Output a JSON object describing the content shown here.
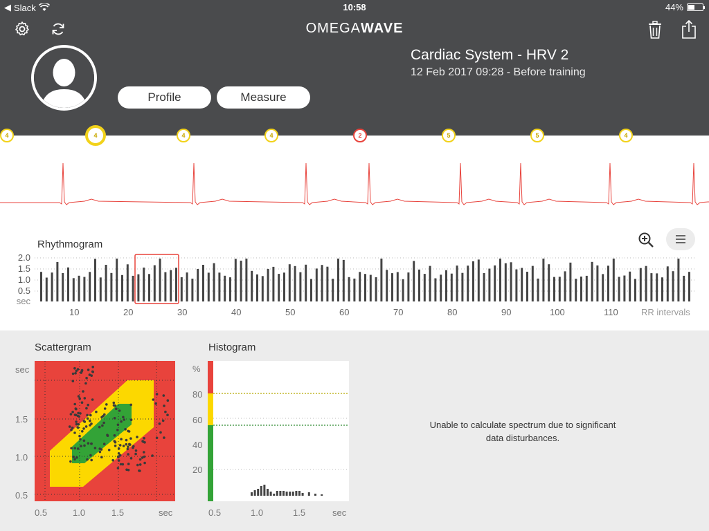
{
  "status_bar": {
    "back_app": "Slack",
    "time": "10:58",
    "battery": "44%",
    "battery_level": 0.44
  },
  "header": {
    "logo_part1": "OMEGA",
    "logo_part2": "WAVE",
    "title": "Cardiac System - HRV 2",
    "subtitle": "12 Feb 2017 09:28 - Before training",
    "profile_label": "Profile",
    "measure_label": "Measure"
  },
  "markers": [
    {
      "value": "4",
      "status": "yellow",
      "selected": false
    },
    {
      "value": "4",
      "status": "yellow",
      "selected": true
    },
    {
      "value": "4",
      "status": "yellow",
      "selected": false
    },
    {
      "value": "4",
      "status": "yellow",
      "selected": false
    },
    {
      "value": "2",
      "status": "red",
      "selected": false
    },
    {
      "value": "5",
      "status": "yellow",
      "selected": false
    },
    {
      "value": "5",
      "status": "yellow",
      "selected": false
    },
    {
      "value": "4",
      "status": "yellow",
      "selected": false
    }
  ],
  "rhythmogram": {
    "title": "Rhythmogram",
    "y_ticks": [
      "2.0",
      "1.5",
      "1.0",
      "0.5"
    ],
    "y_unit": "sec",
    "x_ticks": [
      "10",
      "20",
      "30",
      "40",
      "50",
      "60",
      "70",
      "80",
      "90",
      "100",
      "110"
    ],
    "x_label": "RR intervals"
  },
  "scattergram": {
    "title": "Scattergram",
    "y_unit": "sec",
    "y_ticks": [
      "1.5",
      "1.0",
      "0.5"
    ],
    "x_ticks": [
      "0.5",
      "1.0",
      "1.5"
    ],
    "x_unit": "sec"
  },
  "histogram": {
    "title": "Histogram",
    "y_unit": "%",
    "y_ticks": [
      "80",
      "60",
      "40",
      "20"
    ],
    "x_ticks": [
      "0.5",
      "1.0",
      "1.5"
    ],
    "x_unit": "sec"
  },
  "spectrum_message": "Unable to calculate spectrum due to significant data disturbances.",
  "colors": {
    "header": "#4a4b4d",
    "red": "#e8433c",
    "yellow": "#fcd800",
    "green": "#33a337"
  }
}
